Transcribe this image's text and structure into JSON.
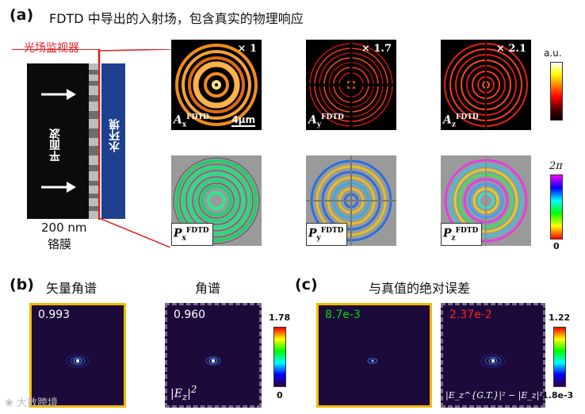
{
  "panel_a": {
    "label": "(a)",
    "title": "FDTD 中导出的入射场，包含真实的物理响应",
    "monitor_label": "光场监视器",
    "plane_wave_label": "平面波",
    "water_label": "水环境",
    "film_thickness": "200 nm",
    "film_material": "铬膜",
    "amp_multipliers": [
      "× 1",
      "× 1.7",
      "× 2.1"
    ],
    "amp_labels": [
      {
        "base": "A",
        "sub": "x",
        "sup": "FDTD"
      },
      {
        "base": "A",
        "sub": "y",
        "sup": "FDTD"
      },
      {
        "base": "A",
        "sub": "z",
        "sup": "FDTD"
      }
    ],
    "phase_labels": [
      {
        "base": "P",
        "sub": "x",
        "sup": "FDTD"
      },
      {
        "base": "P",
        "sub": "y",
        "sup": "FDTD"
      },
      {
        "base": "P",
        "sub": "z",
        "sup": "FDTD"
      }
    ],
    "scale_bar": "4μm",
    "amp_colorbar_top": "a.u.",
    "phase_colorbar_top": "2π",
    "phase_colorbar_bottom": "0"
  },
  "panel_b": {
    "label": "(b)",
    "titles": [
      "矢量角谱",
      "角谱"
    ],
    "values": [
      "0.993",
      "0.960"
    ],
    "field_label": "|E",
    "field_sub": "z",
    "field_sup": "2",
    "colorbar_max": "1.78",
    "colorbar_min": "0"
  },
  "panel_c": {
    "label": "(c)",
    "title": "与真值的绝对误差",
    "values": [
      "8.7e-3",
      "2.37e-2"
    ],
    "formula": "|E_z^{G.T.}|² − |E_z|²",
    "colorbar_max": "1.22",
    "colorbar_min": "1.8e-3"
  },
  "watermark": "大数跨境",
  "colors": {
    "highlight_border": "#f5b800",
    "dashed_border": "#7a6a8a",
    "monitor_red": "#e31a1c",
    "water_blue": "#1f3f8f",
    "value_green": "#00dd00",
    "value_red": "#ff2020",
    "dark_purple": "#1b0a3a"
  }
}
